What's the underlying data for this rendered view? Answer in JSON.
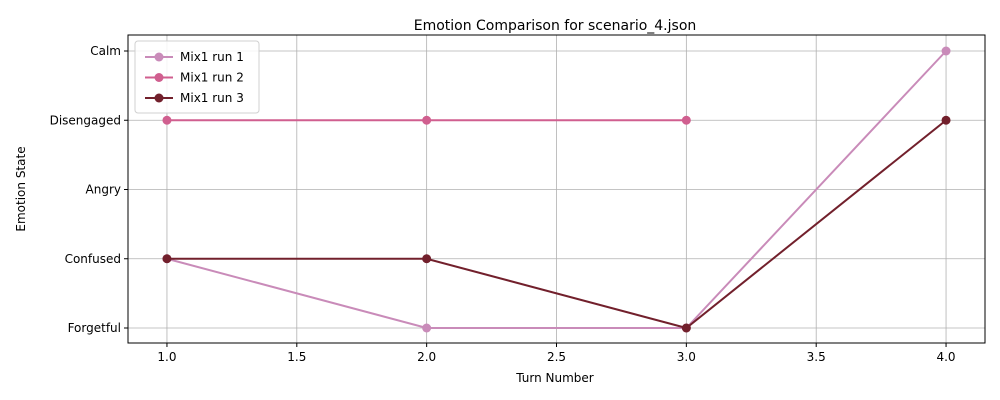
{
  "chart_data": {
    "type": "line",
    "title": "Emotion Comparison for scenario_4.json",
    "xlabel": "Turn Number",
    "ylabel": "Emotion State",
    "xlim": [
      0.85,
      4.15
    ],
    "xticks": [
      1.0,
      1.5,
      2.0,
      2.5,
      3.0,
      3.5,
      4.0
    ],
    "xtick_labels": [
      "1.0",
      "1.5",
      "2.0",
      "2.5",
      "3.0",
      "3.5",
      "4.0"
    ],
    "categories_y": [
      "Forgetful",
      "Confused",
      "Angry",
      "Disengaged",
      "Calm"
    ],
    "grid": true,
    "legend_position": "top-left",
    "series": [
      {
        "name": "Mix1 run 1",
        "color": "#c98bb9",
        "x": [
          1,
          2,
          3,
          4
        ],
        "y": [
          "Confused",
          "Forgetful",
          "Forgetful",
          "Calm"
        ]
      },
      {
        "name": "Mix1 run 2",
        "color": "#d05f8f",
        "x": [
          1,
          2,
          3
        ],
        "y": [
          "Disengaged",
          "Disengaged",
          "Disengaged"
        ]
      },
      {
        "name": "Mix1 run 3",
        "color": "#72202c",
        "x": [
          1,
          2,
          3,
          4
        ],
        "y": [
          "Confused",
          "Confused",
          "Forgetful",
          "Disengaged"
        ]
      }
    ]
  }
}
